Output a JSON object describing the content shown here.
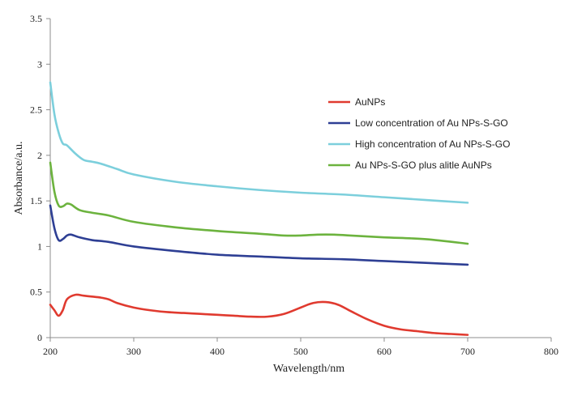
{
  "chart_data": {
    "type": "line",
    "title": "",
    "xlabel": "Wavelength/nm",
    "ylabel": "Absorbance/a.u.",
    "xlim": [
      200,
      800
    ],
    "ylim": [
      0,
      3.5
    ],
    "x_ticks": [
      200,
      300,
      400,
      500,
      600,
      700,
      800
    ],
    "y_ticks": [
      0,
      0.5,
      1,
      1.5,
      2,
      2.5,
      3,
      3.5
    ],
    "x_tick_labels": [
      "200",
      "300",
      "400",
      "500",
      "600",
      "700",
      "800"
    ],
    "y_tick_labels": [
      "0",
      "0.5",
      "1",
      "1.5",
      "2",
      "2.5",
      "3",
      "3.5"
    ],
    "grid": false,
    "legend_position": "top-right",
    "series": [
      {
        "name": "AuNPs",
        "color": "#e03a2f",
        "points": [
          [
            200,
            0.36
          ],
          [
            205,
            0.3
          ],
          [
            210,
            0.24
          ],
          [
            215,
            0.3
          ],
          [
            220,
            0.42
          ],
          [
            230,
            0.47
          ],
          [
            240,
            0.46
          ],
          [
            250,
            0.45
          ],
          [
            260,
            0.44
          ],
          [
            270,
            0.42
          ],
          [
            280,
            0.38
          ],
          [
            300,
            0.33
          ],
          [
            320,
            0.3
          ],
          [
            340,
            0.28
          ],
          [
            360,
            0.27
          ],
          [
            380,
            0.26
          ],
          [
            400,
            0.25
          ],
          [
            420,
            0.24
          ],
          [
            440,
            0.23
          ],
          [
            460,
            0.23
          ],
          [
            480,
            0.26
          ],
          [
            500,
            0.33
          ],
          [
            515,
            0.38
          ],
          [
            530,
            0.39
          ],
          [
            545,
            0.36
          ],
          [
            560,
            0.29
          ],
          [
            580,
            0.2
          ],
          [
            600,
            0.13
          ],
          [
            620,
            0.09
          ],
          [
            640,
            0.07
          ],
          [
            660,
            0.05
          ],
          [
            680,
            0.04
          ],
          [
            700,
            0.03
          ]
        ]
      },
      {
        "name": "Low concentration of Au NPs-S-GO",
        "color": "#2e3f94",
        "points": [
          [
            200,
            1.45
          ],
          [
            205,
            1.2
          ],
          [
            210,
            1.07
          ],
          [
            215,
            1.08
          ],
          [
            220,
            1.12
          ],
          [
            225,
            1.13
          ],
          [
            235,
            1.1
          ],
          [
            250,
            1.07
          ],
          [
            270,
            1.05
          ],
          [
            300,
            1
          ],
          [
            350,
            0.95
          ],
          [
            400,
            0.91
          ],
          [
            450,
            0.89
          ],
          [
            500,
            0.87
          ],
          [
            550,
            0.86
          ],
          [
            600,
            0.84
          ],
          [
            650,
            0.82
          ],
          [
            700,
            0.8
          ]
        ]
      },
      {
        "name": "High concentration of Au NPs-S-GO",
        "color": "#7ccfdc",
        "points": [
          [
            200,
            2.8
          ],
          [
            205,
            2.45
          ],
          [
            210,
            2.25
          ],
          [
            215,
            2.13
          ],
          [
            220,
            2.11
          ],
          [
            230,
            2.02
          ],
          [
            240,
            1.95
          ],
          [
            250,
            1.93
          ],
          [
            260,
            1.91
          ],
          [
            280,
            1.85
          ],
          [
            300,
            1.79
          ],
          [
            350,
            1.71
          ],
          [
            400,
            1.66
          ],
          [
            450,
            1.62
          ],
          [
            500,
            1.59
          ],
          [
            550,
            1.57
          ],
          [
            600,
            1.54
          ],
          [
            650,
            1.51
          ],
          [
            700,
            1.48
          ]
        ]
      },
      {
        "name": "Au NPs-S-GO plus alitle AuNPs",
        "color": "#6cb33e",
        "points": [
          [
            200,
            1.92
          ],
          [
            205,
            1.6
          ],
          [
            210,
            1.45
          ],
          [
            215,
            1.44
          ],
          [
            220,
            1.47
          ],
          [
            225,
            1.46
          ],
          [
            235,
            1.4
          ],
          [
            250,
            1.37
          ],
          [
            270,
            1.34
          ],
          [
            300,
            1.27
          ],
          [
            350,
            1.21
          ],
          [
            400,
            1.17
          ],
          [
            450,
            1.14
          ],
          [
            480,
            1.12
          ],
          [
            500,
            1.12
          ],
          [
            520,
            1.13
          ],
          [
            540,
            1.13
          ],
          [
            560,
            1.12
          ],
          [
            600,
            1.1
          ],
          [
            650,
            1.08
          ],
          [
            700,
            1.03
          ]
        ]
      }
    ]
  }
}
